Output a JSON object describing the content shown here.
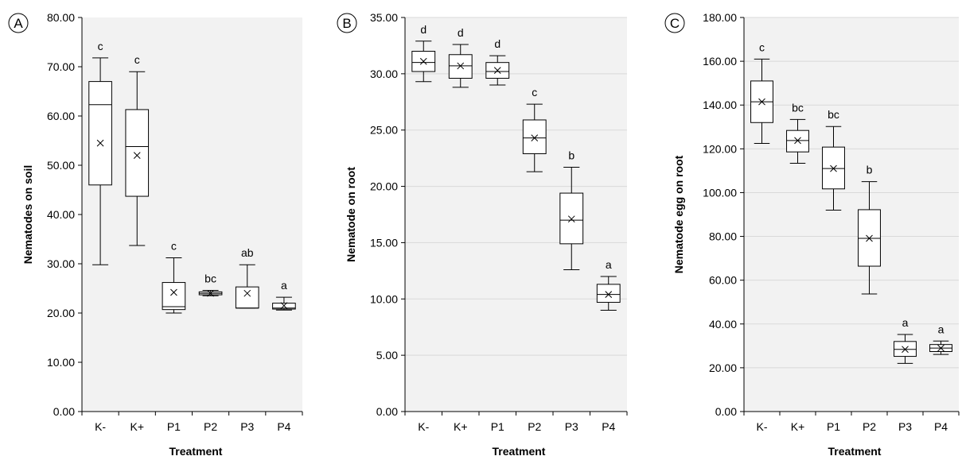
{
  "chart_data": [
    {
      "type": "box",
      "panel_label": "A",
      "xlabel": "Treatment",
      "ylabel": "Nematodes on soil",
      "ylim": [
        0,
        80
      ],
      "ytick_step": 10,
      "ytick_labels": [
        "0.00",
        "10.00",
        "20.00",
        "30.00",
        "40.00",
        "50.00",
        "60.00",
        "70.00",
        "80.00"
      ],
      "categories": [
        "K-",
        "K+",
        "P1",
        "P2",
        "P3",
        "P4"
      ],
      "boxes": [
        {
          "min": 29.8,
          "q1": 46.0,
          "median": 62.3,
          "q3": 67.0,
          "max": 71.8,
          "mean": 54.5,
          "letter": "c"
        },
        {
          "min": 33.7,
          "q1": 43.7,
          "median": 53.8,
          "q3": 61.3,
          "max": 69.0,
          "mean": 52.0,
          "letter": "c"
        },
        {
          "min": 20.0,
          "q1": 20.7,
          "median": 21.3,
          "q3": 26.2,
          "max": 31.2,
          "mean": 24.2,
          "letter": "c"
        },
        {
          "min": 23.5,
          "q1": 23.7,
          "median": 24.0,
          "q3": 24.3,
          "max": 24.6,
          "mean": 24.0,
          "letter": "bc"
        },
        {
          "min": 21.0,
          "q1": 21.0,
          "median": 21.0,
          "q3": 25.3,
          "max": 29.8,
          "mean": 24.0,
          "letter": "ab"
        },
        {
          "min": 20.6,
          "q1": 20.8,
          "median": 21.0,
          "q3": 22.0,
          "max": 23.2,
          "mean": 21.5,
          "letter": "a"
        }
      ],
      "grid": false,
      "background": "#f2f2f2"
    },
    {
      "type": "box",
      "panel_label": "B",
      "xlabel": "Treatment",
      "ylabel": "Nematode on root",
      "ylim": [
        0,
        35
      ],
      "ytick_step": 5,
      "ytick_labels": [
        "0.00",
        "5.00",
        "10.00",
        "15.00",
        "20.00",
        "25.00",
        "30.00",
        "35.00"
      ],
      "categories": [
        "K-",
        "K+",
        "P1",
        "P2",
        "P3",
        "P4"
      ],
      "boxes": [
        {
          "min": 29.3,
          "q1": 30.2,
          "median": 31.0,
          "q3": 32.0,
          "max": 32.9,
          "mean": 31.1,
          "letter": "d"
        },
        {
          "min": 28.8,
          "q1": 29.6,
          "median": 30.7,
          "q3": 31.7,
          "max": 32.6,
          "mean": 30.7,
          "letter": "d"
        },
        {
          "min": 29.0,
          "q1": 29.6,
          "median": 30.2,
          "q3": 31.0,
          "max": 31.6,
          "mean": 30.3,
          "letter": "d"
        },
        {
          "min": 21.3,
          "q1": 22.9,
          "median": 24.3,
          "q3": 25.9,
          "max": 27.3,
          "mean": 24.3,
          "letter": "c"
        },
        {
          "min": 12.6,
          "q1": 14.9,
          "median": 17.0,
          "q3": 19.4,
          "max": 21.7,
          "mean": 17.1,
          "letter": "b"
        },
        {
          "min": 9.0,
          "q1": 9.7,
          "median": 10.4,
          "q3": 11.3,
          "max": 12.0,
          "mean": 10.4,
          "letter": "a"
        }
      ],
      "grid": true,
      "background": "#f2f2f2"
    },
    {
      "type": "box",
      "panel_label": "C",
      "xlabel": "Treatment",
      "ylabel": "Nematode egg on root",
      "ylim": [
        0,
        180
      ],
      "ytick_step": 20,
      "ytick_labels": [
        "0.00",
        "20.00",
        "40.00",
        "60.00",
        "80.00",
        "100.00",
        "120.00",
        "140.00",
        "160.00",
        "180.00"
      ],
      "categories": [
        "K-",
        "K+",
        "P1",
        "P2",
        "P3",
        "P4"
      ],
      "boxes": [
        {
          "min": 122.5,
          "q1": 132.0,
          "median": 141.5,
          "q3": 151.0,
          "max": 161.0,
          "mean": 141.5,
          "letter": "c"
        },
        {
          "min": 113.4,
          "q1": 118.6,
          "median": 123.8,
          "q3": 128.4,
          "max": 133.4,
          "mean": 123.8,
          "letter": "bc"
        },
        {
          "min": 92.0,
          "q1": 101.7,
          "median": 111.0,
          "q3": 120.8,
          "max": 130.2,
          "mean": 111.0,
          "letter": "bc"
        },
        {
          "min": 53.7,
          "q1": 66.4,
          "median": 79.1,
          "q3": 92.2,
          "max": 105.0,
          "mean": 79.1,
          "letter": "b"
        },
        {
          "min": 22.0,
          "q1": 25.2,
          "median": 28.4,
          "q3": 32.0,
          "max": 35.2,
          "mean": 28.4,
          "letter": "a"
        },
        {
          "min": 26.1,
          "q1": 27.4,
          "median": 29.0,
          "q3": 30.6,
          "max": 32.2,
          "mean": 29.0,
          "letter": "a"
        }
      ],
      "grid": true,
      "background": "#f2f2f2"
    }
  ]
}
